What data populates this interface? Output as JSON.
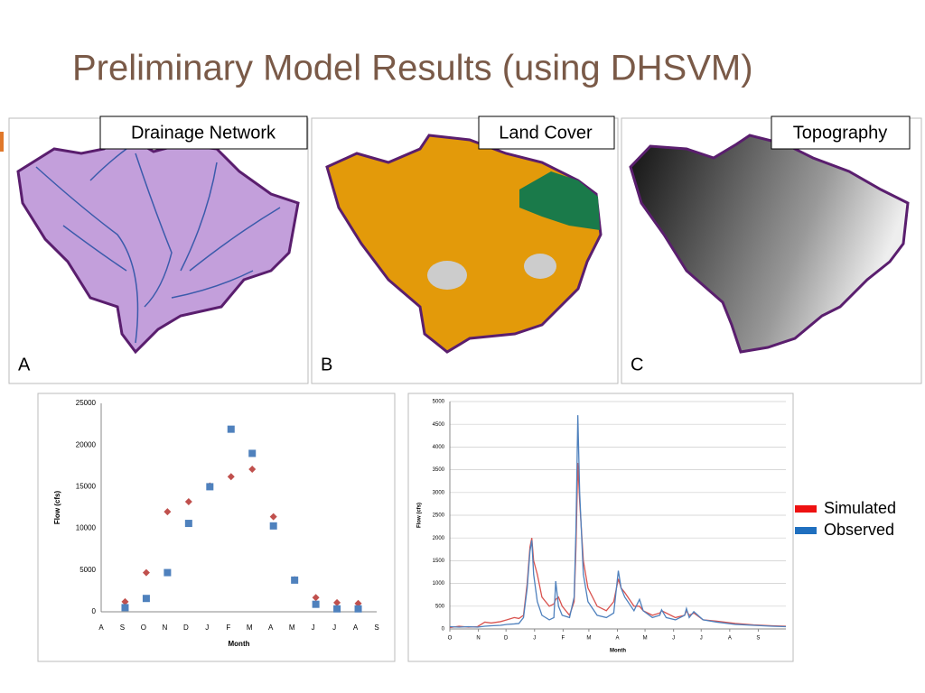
{
  "title": "Preliminary Model Results (using DHSVM)",
  "maps": [
    {
      "label": "Drainage Network",
      "letter": "A"
    },
    {
      "label": "Land Cover",
      "letter": "B"
    },
    {
      "label": "Topography",
      "letter": "C"
    }
  ],
  "chart_data": [
    {
      "type": "scatter",
      "x_label": "Month",
      "y_label": "Flow (cfs)",
      "categories": [
        "A",
        "S",
        "O",
        "N",
        "D",
        "J",
        "F",
        "M",
        "A",
        "M",
        "J",
        "J",
        "A",
        "S"
      ],
      "series": [
        {
          "color": "#c0504d",
          "marker": "diamond",
          "values": [
            null,
            1200,
            4700,
            12000,
            13200,
            15100,
            16200,
            17100,
            11400,
            3850,
            1700,
            1100,
            1000,
            null
          ]
        },
        {
          "color": "#4f81bd",
          "marker": "square",
          "values": [
            null,
            500,
            1600,
            4700,
            10600,
            15000,
            21900,
            19000,
            10300,
            3800,
            900,
            350,
            350,
            null
          ]
        }
      ],
      "ylim": [
        0,
        25000
      ],
      "yticks": [
        0,
        5000,
        10000,
        15000,
        20000,
        25000
      ],
      "grid": false
    },
    {
      "type": "line",
      "x_label": "Month",
      "y_label": "Flow (cfs)",
      "x": [
        0,
        10,
        20,
        30,
        38,
        45,
        55,
        62,
        70,
        75,
        80,
        84,
        87,
        89,
        91,
        95,
        100,
        108,
        113,
        115,
        118,
        122,
        130,
        135,
        137,
        139,
        141,
        145,
        150,
        160,
        170,
        178,
        183,
        186,
        190,
        200,
        206,
        210,
        220,
        228,
        230,
        235,
        245,
        255,
        257,
        260,
        265,
        275,
        290,
        310,
        330,
        350,
        365
      ],
      "xlim": [
        0,
        365
      ],
      "xticks": [
        {
          "value": 0,
          "label": "O"
        },
        {
          "value": 31,
          "label": "N"
        },
        {
          "value": 61,
          "label": "D"
        },
        {
          "value": 92,
          "label": "J"
        },
        {
          "value": 123,
          "label": "F"
        },
        {
          "value": 151,
          "label": "M"
        },
        {
          "value": 182,
          "label": "A"
        },
        {
          "value": 212,
          "label": "M"
        },
        {
          "value": 243,
          "label": "J"
        },
        {
          "value": 273,
          "label": "J"
        },
        {
          "value": 304,
          "label": "A"
        },
        {
          "value": 335,
          "label": "S"
        }
      ],
      "series": [
        {
          "name": "Simulated",
          "color": "#d9534f",
          "legend_color": "#ee1111",
          "values": [
            30,
            60,
            40,
            50,
            150,
            130,
            160,
            200,
            250,
            230,
            300,
            1000,
            1800,
            2000,
            1500,
            1200,
            700,
            500,
            550,
            650,
            700,
            500,
            300,
            600,
            1800,
            3650,
            2800,
            1500,
            900,
            500,
            400,
            600,
            1100,
            900,
            800,
            500,
            500,
            400,
            300,
            350,
            400,
            350,
            250,
            300,
            400,
            300,
            350,
            200,
            170,
            120,
            90,
            70,
            60
          ]
        },
        {
          "name": "Observed",
          "color": "#4f81bd",
          "legend_color": "#1f6fbf",
          "values": [
            50,
            40,
            50,
            40,
            60,
            70,
            80,
            100,
            110,
            120,
            250,
            900,
            1700,
            1950,
            1200,
            600,
            300,
            200,
            250,
            1050,
            500,
            300,
            250,
            700,
            2200,
            4700,
            3000,
            1200,
            600,
            300,
            250,
            350,
            1280,
            900,
            700,
            400,
            650,
            400,
            250,
            300,
            420,
            250,
            200,
            300,
            450,
            250,
            380,
            200,
            150,
            100,
            80,
            60,
            50
          ]
        }
      ],
      "ylim": [
        0,
        5000
      ],
      "yticks": [
        0,
        500,
        1000,
        1500,
        2000,
        2500,
        3000,
        3500,
        4000,
        4500,
        5000
      ],
      "grid": true,
      "legend": "right"
    }
  ]
}
